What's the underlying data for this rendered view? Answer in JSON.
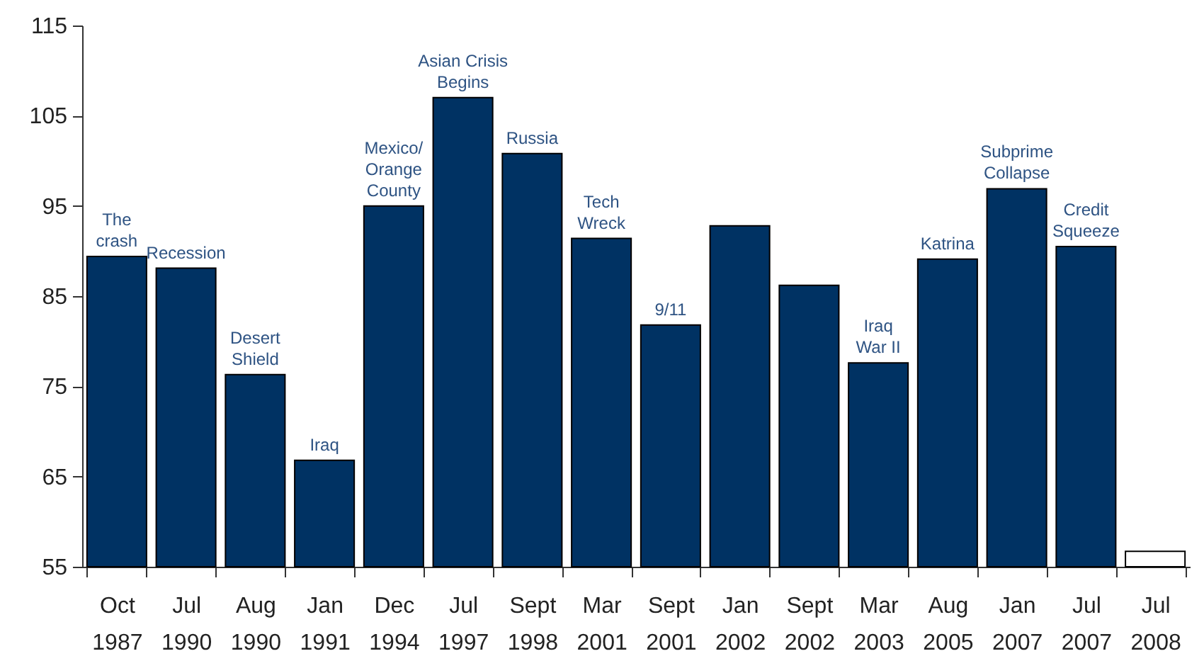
{
  "chart_data": {
    "type": "bar",
    "categories": [
      "Oct 1987",
      "Jul 1990",
      "Aug 1990",
      "Jan 1991",
      "Dec 1994",
      "Jul 1997",
      "Sept 1998",
      "Mar 2001",
      "Sept 2001",
      "Jan 2002",
      "Sept 2002",
      "Mar 2003",
      "Aug 2005",
      "Jan 2007",
      "Jul 2007",
      "Jul 2008"
    ],
    "values": [
      89.4,
      88.1,
      76.3,
      66.8,
      95,
      107,
      100.8,
      91.4,
      81.8,
      92.8,
      86.2,
      77.6,
      89.1,
      96.9,
      90.5,
      56.7
    ],
    "colors": [
      "#003263",
      "#003263",
      "#003263",
      "#003263",
      "#003263",
      "#003263",
      "#003263",
      "#003263",
      "#003263",
      "#003263",
      "#003263",
      "#003263",
      "#003263",
      "#003263",
      "#003263",
      "#ffffff"
    ],
    "ylim": [
      55,
      115
    ],
    "yticks": [
      55,
      65,
      75,
      85,
      95,
      105,
      115
    ],
    "grid": false,
    "annotations": [
      {
        "text": "The\ncrash",
        "x": "Oct 1987",
        "y": 89.4
      },
      {
        "text": "Recession",
        "x": "Jul 1990",
        "y": 88.1
      },
      {
        "text": "Desert\nShield",
        "x": "Aug 1990",
        "y": 76.3
      },
      {
        "text": "Iraq",
        "x": "Jan 1991",
        "y": 66.8
      },
      {
        "text": "Mexico/\nOrange\nCounty",
        "x": "Dec 1994",
        "y": 95
      },
      {
        "text": "Asian Crisis\nBegins",
        "x": "Jul 1997",
        "y": 107
      },
      {
        "text": "Russia",
        "x": "Sept 1998",
        "y": 100.8
      },
      {
        "text": "Tech\nWreck",
        "x": "Mar 2001",
        "y": 91.4
      },
      {
        "text": "9/11",
        "x": "Sept 2001",
        "y": 81.8
      },
      {
        "text": "Iraq\nWar II",
        "x": "Mar 2003",
        "y": 77.6
      },
      {
        "text": "Katrina",
        "x": "Aug 2005",
        "y": 89.1
      },
      {
        "text": "Subprime\nCollapse",
        "x": "Jan 2007",
        "y": 96.9
      },
      {
        "text": "Credit\nSqueeze",
        "x": "Jul 2007",
        "y": 90.5
      }
    ]
  }
}
